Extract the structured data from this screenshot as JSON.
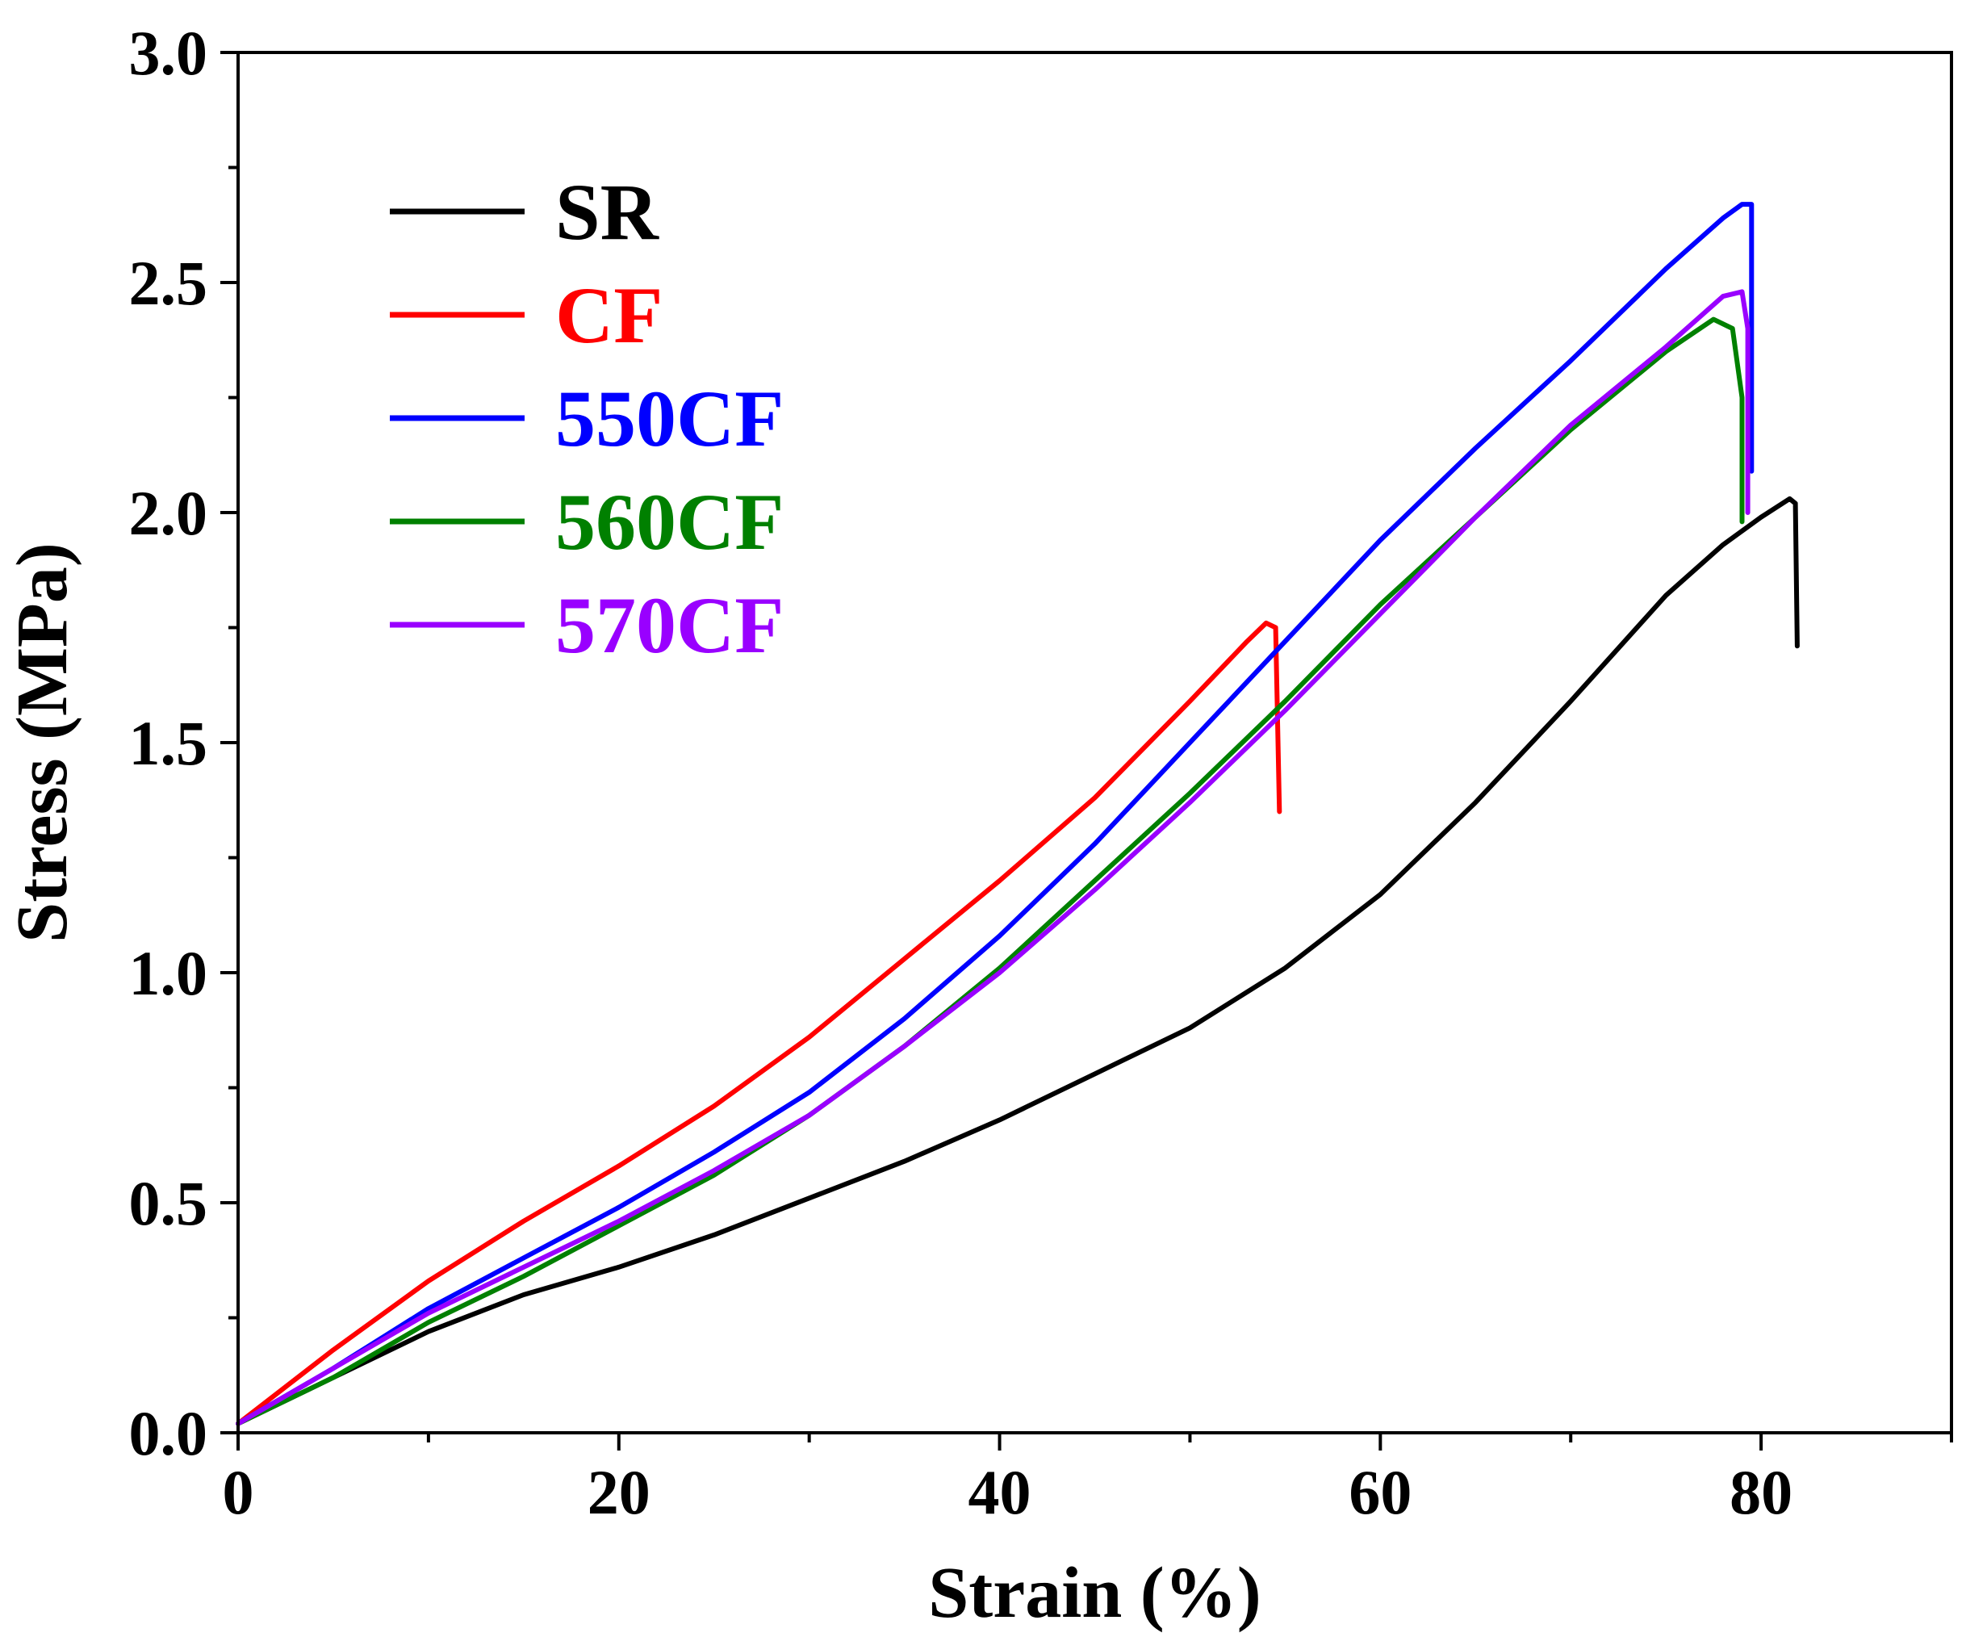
{
  "chart_data": {
    "type": "line",
    "xlabel": "Strain (%)",
    "ylabel": "Stress (MPa)",
    "xlim": [
      0,
      90
    ],
    "ylim": [
      0,
      3.0
    ],
    "x_ticks": [
      0,
      20,
      40,
      60,
      80
    ],
    "x_ticks_labels": [
      "0",
      "20",
      "40",
      "60",
      "80"
    ],
    "x_minor_ticks": [
      10,
      30,
      50,
      70,
      90
    ],
    "y_ticks": [
      0,
      0.5,
      1.0,
      1.5,
      2.0,
      2.5,
      3.0
    ],
    "y_ticks_labels": [
      "0.0",
      "0.5",
      "1.0",
      "1.5",
      "2.0",
      "2.5",
      "3.0"
    ],
    "y_minor_ticks": [
      0.25,
      0.75,
      1.25,
      1.75,
      2.25,
      2.75
    ],
    "grid": false,
    "legend_position": "top-left",
    "series": [
      {
        "name": "SR",
        "color": "#000000",
        "points": [
          [
            0,
            0.02
          ],
          [
            5,
            0.12
          ],
          [
            10,
            0.22
          ],
          [
            15,
            0.3
          ],
          [
            20,
            0.36
          ],
          [
            25,
            0.43
          ],
          [
            30,
            0.51
          ],
          [
            35,
            0.59
          ],
          [
            40,
            0.68
          ],
          [
            45,
            0.78
          ],
          [
            50,
            0.88
          ],
          [
            55,
            1.01
          ],
          [
            60,
            1.17
          ],
          [
            65,
            1.37
          ],
          [
            70,
            1.59
          ],
          [
            75,
            1.82
          ],
          [
            78,
            1.93
          ],
          [
            80,
            1.99
          ],
          [
            81.5,
            2.03
          ],
          [
            81.8,
            2.02
          ],
          [
            81.9,
            1.71
          ]
        ]
      },
      {
        "name": "CF",
        "color": "#ff0000",
        "points": [
          [
            0,
            0.02
          ],
          [
            5,
            0.18
          ],
          [
            10,
            0.33
          ],
          [
            15,
            0.46
          ],
          [
            20,
            0.58
          ],
          [
            25,
            0.71
          ],
          [
            30,
            0.86
          ],
          [
            35,
            1.03
          ],
          [
            40,
            1.2
          ],
          [
            45,
            1.38
          ],
          [
            50,
            1.59
          ],
          [
            53,
            1.72
          ],
          [
            54,
            1.76
          ],
          [
            54.5,
            1.75
          ],
          [
            54.7,
            1.35
          ]
        ]
      },
      {
        "name": "550CF",
        "color": "#0000ff",
        "points": [
          [
            0,
            0.02
          ],
          [
            5,
            0.14
          ],
          [
            10,
            0.27
          ],
          [
            15,
            0.38
          ],
          [
            20,
            0.49
          ],
          [
            25,
            0.61
          ],
          [
            30,
            0.74
          ],
          [
            35,
            0.9
          ],
          [
            40,
            1.08
          ],
          [
            45,
            1.28
          ],
          [
            50,
            1.5
          ],
          [
            55,
            1.72
          ],
          [
            60,
            1.94
          ],
          [
            65,
            2.14
          ],
          [
            70,
            2.33
          ],
          [
            75,
            2.53
          ],
          [
            78,
            2.64
          ],
          [
            79,
            2.67
          ],
          [
            79.5,
            2.67
          ],
          [
            79.5,
            2.09
          ]
        ]
      },
      {
        "name": "560CF",
        "color": "#008000",
        "points": [
          [
            0,
            0.02
          ],
          [
            5,
            0.12
          ],
          [
            10,
            0.24
          ],
          [
            15,
            0.34
          ],
          [
            20,
            0.45
          ],
          [
            25,
            0.56
          ],
          [
            30,
            0.69
          ],
          [
            35,
            0.84
          ],
          [
            40,
            1.01
          ],
          [
            45,
            1.2
          ],
          [
            50,
            1.39
          ],
          [
            55,
            1.59
          ],
          [
            60,
            1.8
          ],
          [
            65,
            1.99
          ],
          [
            70,
            2.18
          ],
          [
            75,
            2.35
          ],
          [
            77.5,
            2.42
          ],
          [
            78.5,
            2.4
          ],
          [
            79,
            2.25
          ],
          [
            79,
            1.98
          ]
        ]
      },
      {
        "name": "570CF",
        "color": "#9900ff",
        "points": [
          [
            0,
            0.02
          ],
          [
            5,
            0.14
          ],
          [
            10,
            0.26
          ],
          [
            15,
            0.36
          ],
          [
            20,
            0.46
          ],
          [
            25,
            0.57
          ],
          [
            30,
            0.69
          ],
          [
            35,
            0.84
          ],
          [
            40,
            1.0
          ],
          [
            45,
            1.18
          ],
          [
            50,
            1.37
          ],
          [
            55,
            1.57
          ],
          [
            60,
            1.78
          ],
          [
            65,
            1.99
          ],
          [
            70,
            2.19
          ],
          [
            75,
            2.36
          ],
          [
            78,
            2.47
          ],
          [
            79,
            2.48
          ],
          [
            79.3,
            2.4
          ],
          [
            79.3,
            2.0
          ]
        ]
      }
    ]
  }
}
